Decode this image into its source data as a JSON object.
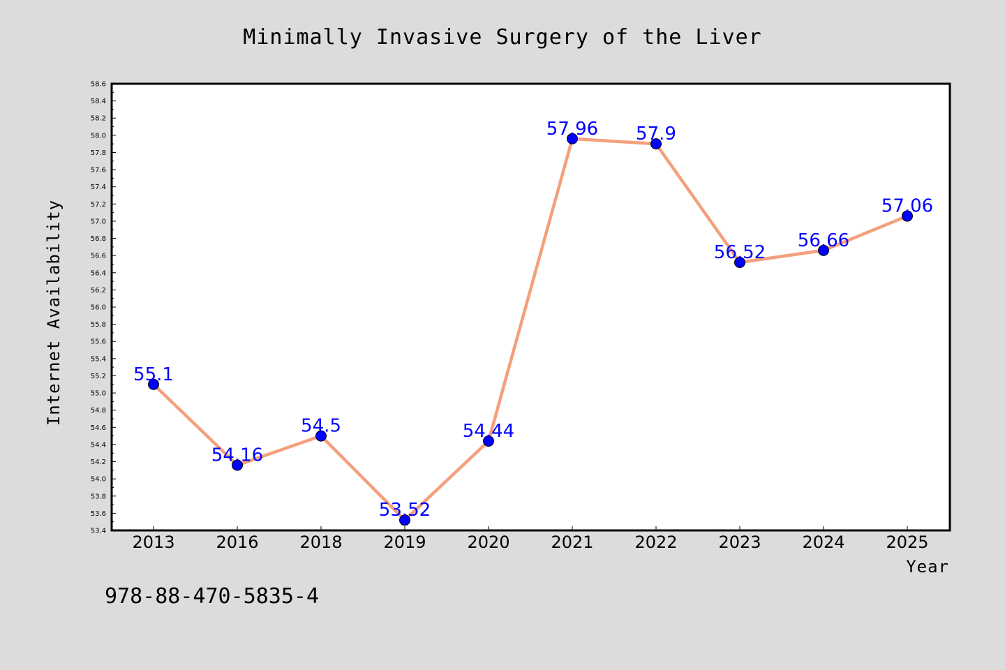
{
  "chart_data": {
    "type": "line",
    "title": "Minimally Invasive Surgery of the Liver",
    "xlabel": "Year",
    "ylabel": "Internet Availability",
    "categories": [
      "2013",
      "2016",
      "2018",
      "2019",
      "2020",
      "2021",
      "2022",
      "2023",
      "2024",
      "2025"
    ],
    "series": [
      {
        "values": [
          55.1,
          54.16,
          54.5,
          53.52,
          54.44,
          57.96,
          57.9,
          56.52,
          56.66,
          57.06
        ],
        "labels": [
          "55.1",
          "54.16",
          "54.5",
          "53.52",
          "54.44",
          "57.96",
          "57.9",
          "56.52",
          "56.66",
          "57.06"
        ]
      }
    ],
    "ylim": [
      53.4,
      58.6
    ],
    "yticks": [
      "53.4",
      "53.6",
      "53.8",
      "54.0",
      "54.2",
      "54.4",
      "54.6",
      "54.8",
      "55.0",
      "55.2",
      "55.4",
      "55.6",
      "55.8",
      "56.0",
      "56.2",
      "56.4",
      "56.6",
      "56.8",
      "57.0",
      "57.2",
      "57.4",
      "57.6",
      "57.8",
      "58.0",
      "58.2",
      "58.4",
      "58.6"
    ],
    "grid": false,
    "legend": "none",
    "colors": {
      "line": "#f4a07c",
      "marker": "#0000ff",
      "label": "#0000ff",
      "plot_background": "#ffffff",
      "figure_background": "#dcdcdc"
    }
  },
  "footnote": "978-88-470-5835-4"
}
